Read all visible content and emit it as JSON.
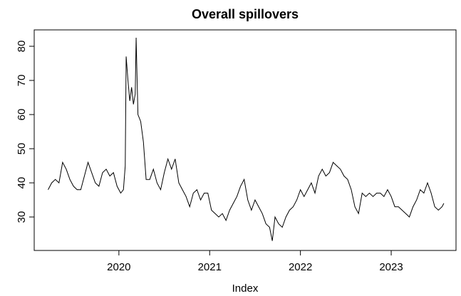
{
  "chart_data": {
    "type": "line",
    "title": "Overall spillovers",
    "x_label": "Index",
    "x": [
      2019.22,
      2019.26,
      2019.3,
      2019.34,
      2019.38,
      2019.42,
      2019.46,
      2019.5,
      2019.54,
      2019.58,
      2019.62,
      2019.66,
      2019.7,
      2019.74,
      2019.78,
      2019.82,
      2019.86,
      2019.9,
      2019.94,
      2019.98,
      2020.02,
      2020.05,
      2020.07,
      2020.08,
      2020.1,
      2020.12,
      2020.14,
      2020.16,
      2020.18,
      2020.19,
      2020.21,
      2020.24,
      2020.27,
      2020.3,
      2020.34,
      2020.38,
      2020.42,
      2020.46,
      2020.5,
      2020.54,
      2020.58,
      2020.62,
      2020.66,
      2020.7,
      2020.74,
      2020.78,
      2020.82,
      2020.86,
      2020.9,
      2020.94,
      2020.98,
      2021.02,
      2021.06,
      2021.1,
      2021.14,
      2021.18,
      2021.22,
      2021.26,
      2021.3,
      2021.34,
      2021.38,
      2021.42,
      2021.46,
      2021.5,
      2021.54,
      2021.58,
      2021.62,
      2021.66,
      2021.69,
      2021.72,
      2021.76,
      2021.8,
      2021.84,
      2021.88,
      2021.92,
      2021.96,
      2022.0,
      2022.04,
      2022.08,
      2022.12,
      2022.16,
      2022.2,
      2022.24,
      2022.28,
      2022.32,
      2022.36,
      2022.4,
      2022.44,
      2022.48,
      2022.52,
      2022.56,
      2022.6,
      2022.64,
      2022.68,
      2022.72,
      2022.76,
      2022.8,
      2022.84,
      2022.88,
      2022.92,
      2022.96,
      2023.0,
      2023.04,
      2023.08,
      2023.12,
      2023.16,
      2023.2,
      2023.24,
      2023.28,
      2023.32,
      2023.36,
      2023.4,
      2023.44,
      2023.48,
      2023.52,
      2023.56,
      2023.58
    ],
    "series": [
      {
        "name": "Overall spillovers",
        "color": "#000000",
        "values": [
          38,
          40,
          41,
          40,
          46,
          44,
          41,
          39,
          38,
          38,
          42,
          46,
          43,
          40,
          39,
          43,
          44,
          42,
          43,
          39,
          37,
          38,
          45,
          77,
          70,
          64,
          68,
          63,
          66,
          82.5,
          60,
          58,
          52,
          41,
          41,
          44,
          40,
          38,
          43,
          47,
          44,
          47,
          40,
          38,
          36,
          33,
          37,
          38,
          35,
          37,
          37,
          32,
          31,
          30,
          31,
          29,
          32,
          34,
          36,
          39,
          41,
          35,
          32,
          35,
          33,
          31,
          28,
          27,
          23,
          30,
          28,
          27,
          30,
          32,
          33,
          35,
          38,
          36,
          38,
          40,
          37,
          42,
          44,
          42,
          43,
          46,
          45,
          44,
          42,
          41,
          38,
          33,
          31,
          37,
          36,
          37,
          36,
          37,
          37,
          36,
          38,
          36,
          33,
          33,
          32,
          31,
          30,
          33,
          35,
          38,
          37,
          40,
          37,
          33,
          32,
          33,
          34
        ]
      }
    ],
    "xlim": [
      2019.067,
      2023.714
    ],
    "xticks": [
      2020,
      2021,
      2022,
      2023
    ],
    "ylim": [
      20.2,
      84.8
    ],
    "yticks": [
      30,
      40,
      50,
      60,
      70,
      80
    ]
  }
}
